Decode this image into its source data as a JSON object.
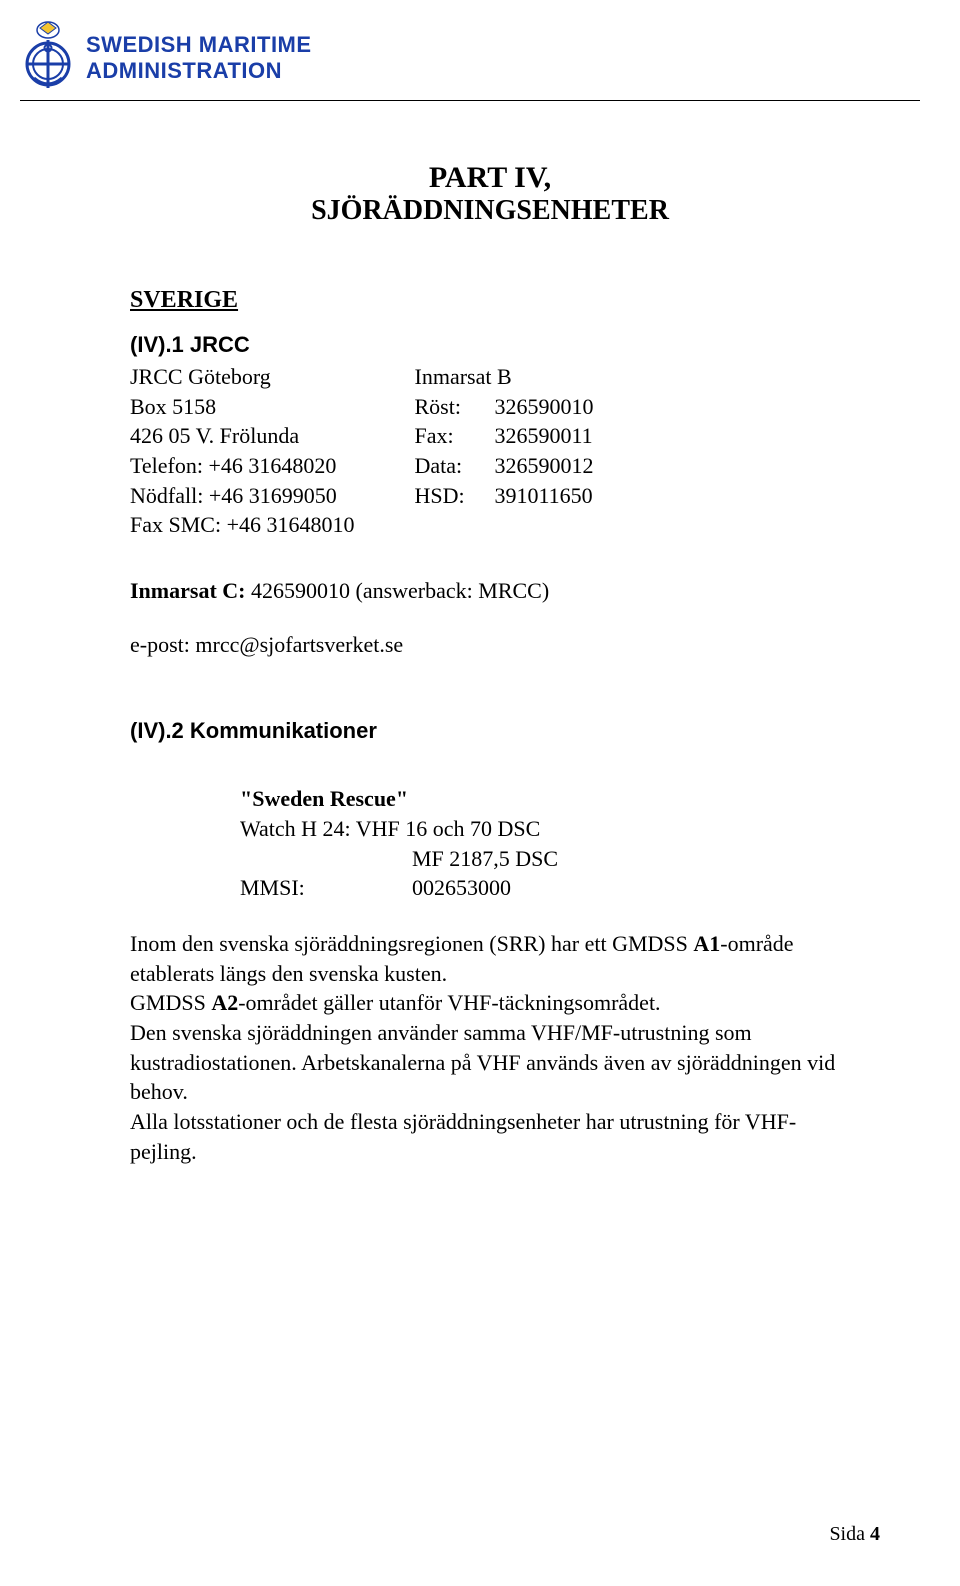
{
  "header": {
    "org_line1": "SWEDISH MARITIME",
    "org_line2": "ADMINISTRATION",
    "logo_stroke": "#1a3ea8",
    "logo_fill": "#f4c430"
  },
  "title": {
    "part": "PART IV,",
    "subtitle": "SJÖRÄDDNINGSENHETER"
  },
  "section_country": "SVERIGE",
  "jrcc": {
    "heading": "(IV).1  JRCC",
    "left": {
      "l1": "JRCC Göteborg",
      "l2": "Box 5158",
      "l3": "426 05 V. Frölunda",
      "l4": "Telefon:  +46 31648020",
      "l5": "Nödfall: +46 31699050",
      "l6": "Fax SMC:  +46 31648010"
    },
    "right": {
      "r1": "Inmarsat B",
      "rows": [
        {
          "label": "Röst:",
          "val": "326590010"
        },
        {
          "label": "Fax:",
          "val": "326590011"
        },
        {
          "label": "Data:",
          "val": "326590012"
        },
        {
          "label": "HSD:",
          "val": "391011650"
        }
      ]
    },
    "inmarsat_c_label": "Inmarsat C:",
    "inmarsat_c_val": " 426590010 (answerback: MRCC)",
    "email": "e-post: mrcc@sjofartsverket.se"
  },
  "komm": {
    "heading": "(IV).2  Kommunikationer",
    "callsign": "\"Sweden Rescue\"",
    "watch": "Watch H 24: VHF   16   och   70 DSC",
    "mf": "MF     2187,5 DSC",
    "mmsi_label": "MMSI:",
    "mmsi_val": "002653000",
    "para": "Inom den svenska sjöräddningsregionen (SRR) har ett GMDSS A1-område etablerats längs den svenska kusten.\nGMDSS A2-området gäller utanför VHF-täckningsområdet.\nDen svenska sjöräddningen använder samma VHF/MF-utrustning som kustradiostationen. Arbetskanalerna på VHF används även av sjöräddningen vid behov.\nAlla lotsstationer och de flesta sjöräddningsenheter har utrustning för VHF-pejling.",
    "a1": "A1",
    "a2": "A2"
  },
  "footer": {
    "page_label": "Sida ",
    "page_num": "4"
  }
}
